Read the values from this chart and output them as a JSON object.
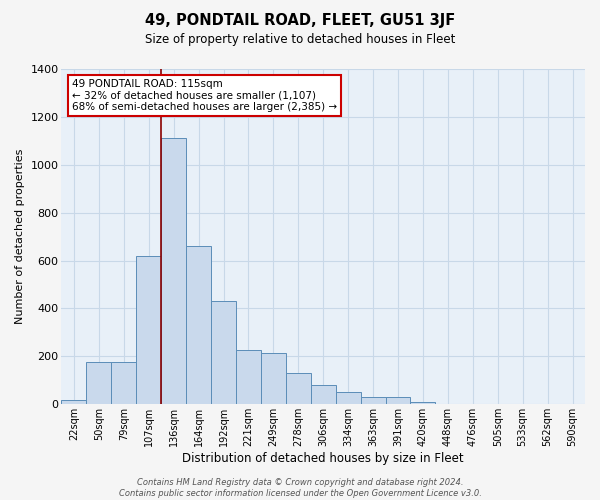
{
  "title": "49, PONDTAIL ROAD, FLEET, GU51 3JF",
  "subtitle": "Size of property relative to detached houses in Fleet",
  "xlabel": "Distribution of detached houses by size in Fleet",
  "ylabel": "Number of detached properties",
  "bar_labels": [
    "22sqm",
    "50sqm",
    "79sqm",
    "107sqm",
    "136sqm",
    "164sqm",
    "192sqm",
    "221sqm",
    "249sqm",
    "278sqm",
    "306sqm",
    "334sqm",
    "363sqm",
    "391sqm",
    "420sqm",
    "448sqm",
    "476sqm",
    "505sqm",
    "533sqm",
    "562sqm",
    "590sqm"
  ],
  "bar_values": [
    20,
    175,
    175,
    620,
    1110,
    660,
    430,
    225,
    215,
    130,
    80,
    50,
    30,
    30,
    10,
    3,
    3,
    3,
    3,
    3,
    3
  ],
  "bar_color": "#c9d9ec",
  "bar_edge_color": "#5b8db8",
  "grid_color": "#c8d8e8",
  "background_color": "#e8f0f8",
  "vline_x": 3.5,
  "vline_color": "#8b0000",
  "annotation_text": "49 PONDTAIL ROAD: 115sqm\n← 32% of detached houses are smaller (1,107)\n68% of semi-detached houses are larger (2,385) →",
  "annotation_box_color": "#ffffff",
  "annotation_box_edge": "#cc0000",
  "ylim": [
    0,
    1400
  ],
  "yticks": [
    0,
    200,
    400,
    600,
    800,
    1000,
    1200,
    1400
  ],
  "fig_bg": "#f5f5f5",
  "footer": "Contains HM Land Registry data © Crown copyright and database right 2024.\nContains public sector information licensed under the Open Government Licence v3.0."
}
